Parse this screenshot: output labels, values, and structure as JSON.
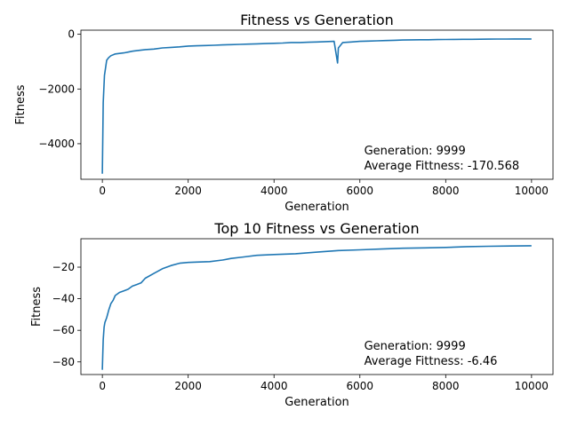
{
  "chart_data": [
    {
      "type": "line",
      "title": "Fitness vs Generation",
      "xlabel": "Generation",
      "ylabel": "Fitness",
      "xlim": [
        -500,
        10500
      ],
      "ylim": [
        -5300,
        150
      ],
      "xticks": [
        0,
        2000,
        4000,
        6000,
        8000,
        10000
      ],
      "xtick_labels": [
        "0",
        "2000",
        "4000",
        "6000",
        "8000",
        "10000"
      ],
      "yticks": [
        0,
        -2000,
        -4000
      ],
      "ytick_labels": [
        "0",
        "−2000",
        "−4000"
      ],
      "annotation": [
        "Generation: 9999",
        "Average Fittness: -170.568"
      ],
      "series": [
        {
          "color": "#1f77b4",
          "x": [
            0,
            20,
            50,
            100,
            150,
            200,
            300,
            400,
            500,
            600,
            700,
            800,
            1000,
            1200,
            1400,
            1600,
            1800,
            2000,
            2200,
            2400,
            2600,
            2800,
            3000,
            3200,
            3400,
            3600,
            3800,
            4000,
            4200,
            4400,
            4600,
            4800,
            5000,
            5200,
            5400,
            5480,
            5500,
            5600,
            5800,
            6000,
            6200,
            6400,
            6600,
            6800,
            7000,
            7200,
            7400,
            7600,
            7800,
            8000,
            8200,
            8400,
            8600,
            8800,
            9000,
            9200,
            9400,
            9600,
            9800,
            9999
          ],
          "y": [
            -5100,
            -2500,
            -1500,
            -950,
            -850,
            -780,
            -720,
            -700,
            -680,
            -650,
            -620,
            -600,
            -560,
            -540,
            -500,
            -480,
            -460,
            -430,
            -420,
            -410,
            -400,
            -390,
            -380,
            -370,
            -360,
            -350,
            -340,
            -330,
            -320,
            -300,
            -300,
            -290,
            -280,
            -270,
            -260,
            -1050,
            -500,
            -300,
            -280,
            -260,
            -250,
            -240,
            -230,
            -220,
            -210,
            -205,
            -200,
            -200,
            -195,
            -190,
            -188,
            -185,
            -183,
            -180,
            -178,
            -176,
            -174,
            -172,
            -171,
            -170
          ]
        }
      ]
    },
    {
      "type": "line",
      "title": "Top 10 Fitness vs Generation",
      "xlabel": "Generation",
      "ylabel": "Fitness",
      "xlim": [
        -500,
        10500
      ],
      "ylim": [
        -88,
        -2
      ],
      "xticks": [
        0,
        2000,
        4000,
        6000,
        8000,
        10000
      ],
      "xtick_labels": [
        "0",
        "2000",
        "4000",
        "6000",
        "8000",
        "10000"
      ],
      "yticks": [
        -20,
        -40,
        -60,
        -80
      ],
      "ytick_labels": [
        "−20",
        "−40",
        "−60",
        "−80"
      ],
      "annotation": [
        "Generation: 9999",
        "Average Fittness: -6.46"
      ],
      "series": [
        {
          "color": "#1f77b4",
          "x": [
            0,
            10,
            20,
            40,
            60,
            100,
            150,
            200,
            250,
            300,
            400,
            500,
            600,
            700,
            800,
            900,
            1000,
            1200,
            1400,
            1600,
            1800,
            2000,
            2200,
            2500,
            2800,
            3000,
            3300,
            3600,
            4000,
            4500,
            5000,
            5500,
            6000,
            6500,
            7000,
            7500,
            8000,
            8500,
            9000,
            9500,
            9999
          ],
          "y": [
            -85,
            -75,
            -66,
            -58,
            -55,
            -52,
            -47,
            -43,
            -41,
            -38,
            -36,
            -35,
            -34,
            -32,
            -31,
            -30,
            -27,
            -24,
            -21,
            -19,
            -17.5,
            -17,
            -16.8,
            -16.5,
            -15.5,
            -14.5,
            -13.5,
            -12.5,
            -12,
            -11.5,
            -10.5,
            -9.5,
            -9,
            -8.5,
            -8,
            -7.8,
            -7.5,
            -7,
            -6.8,
            -6.6,
            -6.46
          ]
        }
      ]
    }
  ]
}
